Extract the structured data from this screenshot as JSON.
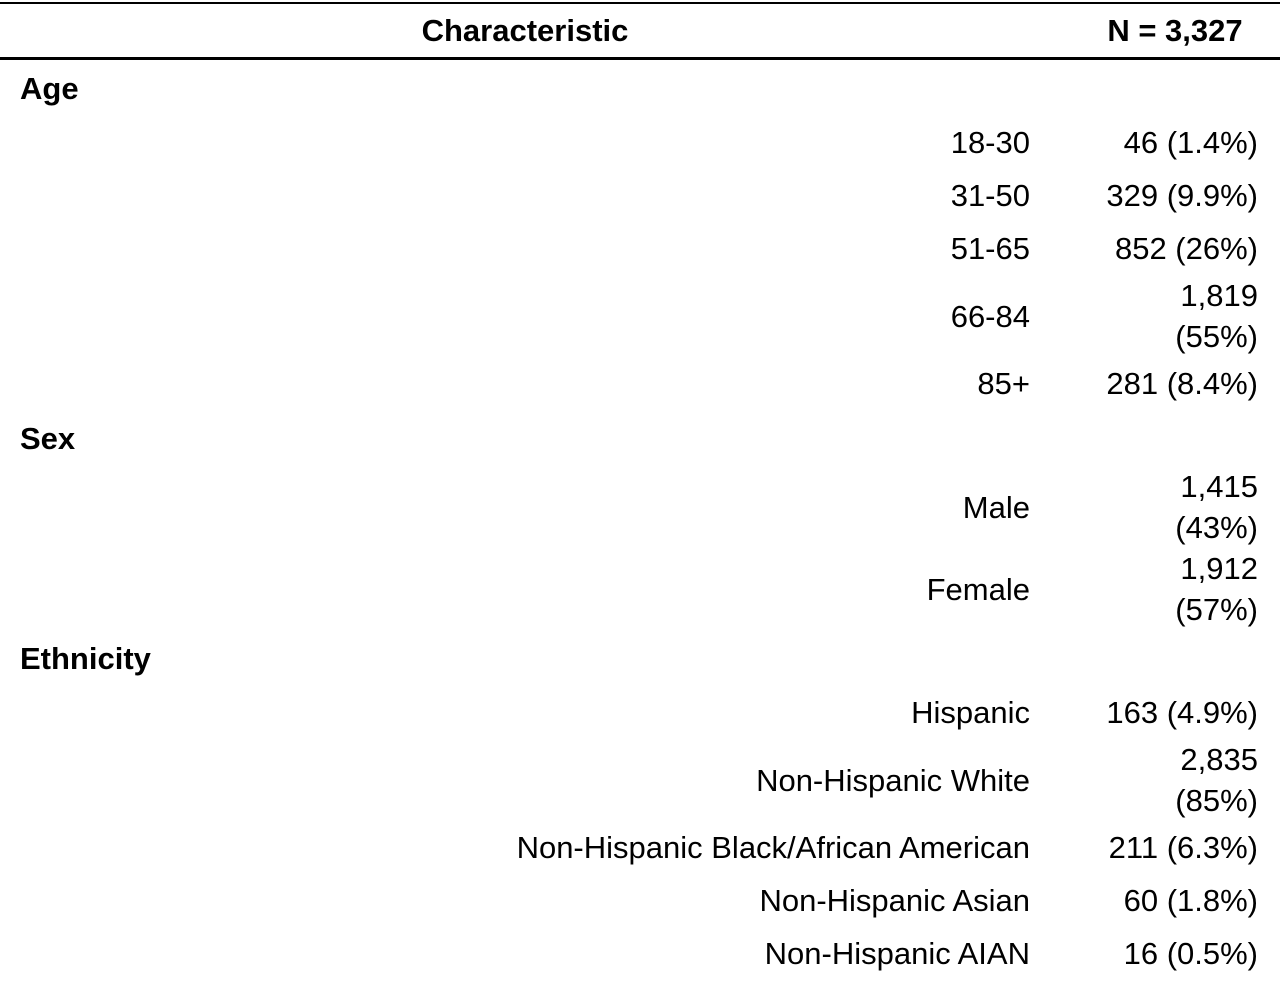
{
  "header": {
    "characteristic": "Characteristic",
    "n": "N = 3,327"
  },
  "groups": [
    {
      "label": "Age",
      "rows": [
        {
          "label": "18-30",
          "value": "46 (1.4%)"
        },
        {
          "label": "31-50",
          "value": "329 (9.9%)"
        },
        {
          "label": "51-65",
          "value": "852 (26%)"
        },
        {
          "label": "66-84",
          "value": "1,819 (55%)"
        },
        {
          "label": "85+",
          "value": "281 (8.4%)"
        }
      ]
    },
    {
      "label": "Sex",
      "rows": [
        {
          "label": "Male",
          "value": "1,415 (43%)"
        },
        {
          "label": "Female",
          "value": "1,912 (57%)"
        }
      ]
    },
    {
      "label": "Ethnicity",
      "rows": [
        {
          "label": "Hispanic",
          "value": "163 (4.9%)"
        },
        {
          "label": "Non-Hispanic White",
          "value": "2,835 (85%)"
        },
        {
          "label": "Non-Hispanic Black/African American",
          "value": "211 (6.3%)"
        },
        {
          "label": "Non-Hispanic Asian",
          "value": "60 (1.8%)"
        },
        {
          "label": "Non-Hispanic AIAN",
          "value": "16 (0.5%)"
        }
      ]
    }
  ]
}
